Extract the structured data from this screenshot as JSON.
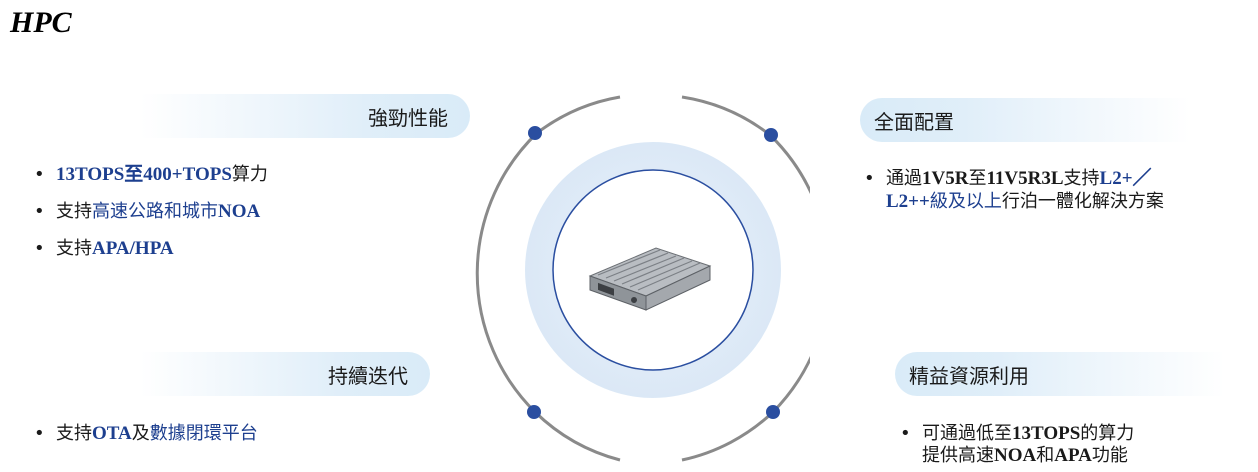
{
  "title": "HPC",
  "cards": {
    "top_left": {
      "label": "強勁性能",
      "items": [
        {
          "a": "13TOPS至400+TOPS",
          "b": "算力"
        },
        {
          "a": "支持",
          "b": "高速公路和城市",
          "c": "NOA"
        },
        {
          "a": "支持",
          "b": "APA/HPA"
        }
      ]
    },
    "top_right": {
      "label": "全面配置",
      "line1": {
        "a": "通過",
        "b": "1V5R",
        "c": "至",
        "d": "11V5R3L",
        "e": "支持",
        "f": "L2+／"
      },
      "line2": {
        "a": "L2++",
        "b": "級及以上",
        "c": "行泊一體化解決方案"
      }
    },
    "bottom_left": {
      "label": "持續迭代",
      "item": {
        "a": "支持",
        "b": "OTA",
        "c": "及",
        "d": "數據閉環平台"
      }
    },
    "bottom_right": {
      "label": "精益資源利用",
      "line1": {
        "a": "可通過低至",
        "b": "13TOPS",
        "c": "的算力"
      },
      "line2": {
        "a": "提供高速",
        "b": "NOA",
        "c": "和",
        "d": "APA",
        "e": "功能"
      }
    }
  },
  "bullet": "•",
  "icons": {
    "center": "hpc-controller-box-icon"
  },
  "colors": {
    "accent": "#1d3f8f",
    "ring": "#8a8a8a",
    "dot": "#2a4ea0",
    "pill": "#d9ebf8"
  }
}
